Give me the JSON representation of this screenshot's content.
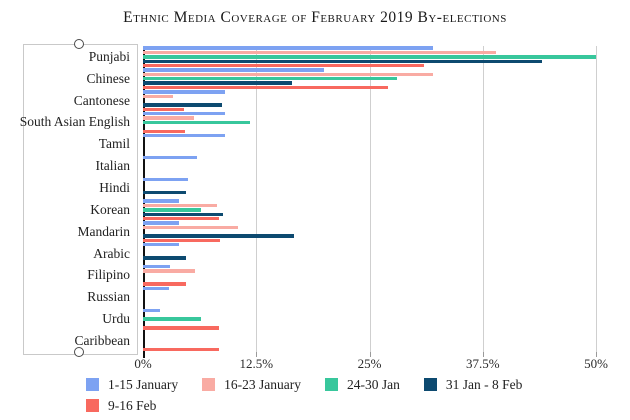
{
  "chart_data": {
    "type": "bar",
    "orientation": "horizontal",
    "title": "Ethnic Media Coverage of February 2019 By-elections",
    "xlabel": "",
    "ylabel": "",
    "xlim": [
      0,
      50
    ],
    "x_ticks": [
      "0%",
      "12.5%",
      "25%",
      "37.5%",
      "50%"
    ],
    "x_tick_values": [
      0,
      12.5,
      25,
      37.5,
      50
    ],
    "grid": true,
    "legend_position": "bottom",
    "value_unit": "percent",
    "categories": [
      "Punjabi",
      "Chinese",
      "Cantonese",
      "South Asian English",
      "Tamil",
      "Italian",
      "Hindi",
      "Korean",
      "Mandarin",
      "Arabic",
      "Filipino",
      "Russian",
      "Urdu",
      "Caribbean"
    ],
    "series": [
      {
        "name": "1-15 January",
        "color": "#7da2f2",
        "values": [
          32,
          20,
          9,
          9,
          9,
          6,
          5,
          4,
          4,
          4,
          3,
          2.9,
          1.9,
          0
        ]
      },
      {
        "name": "16-23 January",
        "color": "#f9aba3",
        "values": [
          39,
          32,
          3.3,
          5.6,
          0,
          0,
          0,
          8.2,
          10.5,
          0,
          5.7,
          0,
          0,
          0
        ]
      },
      {
        "name": "24-30 Jan",
        "color": "#38c79c",
        "values": [
          50,
          28,
          0,
          11.8,
          0,
          0,
          0,
          6.4,
          0,
          0,
          0,
          0,
          6.4,
          0
        ]
      },
      {
        "name": "31 Jan - 8 Feb",
        "color": "#0d4a70",
        "values": [
          44,
          16.5,
          8.7,
          0,
          0,
          0,
          4.8,
          8.8,
          16.7,
          4.8,
          0,
          0,
          0,
          0
        ]
      },
      {
        "name": "9-16 Feb",
        "color": "#f8695f",
        "values": [
          31,
          27,
          4.5,
          4.6,
          0,
          0,
          0,
          8.4,
          8.5,
          0,
          4.7,
          0,
          8.4,
          8.4
        ]
      }
    ]
  },
  "axis_colors": {
    "gridline": "#cfcfcf",
    "baseline": "#111111"
  }
}
